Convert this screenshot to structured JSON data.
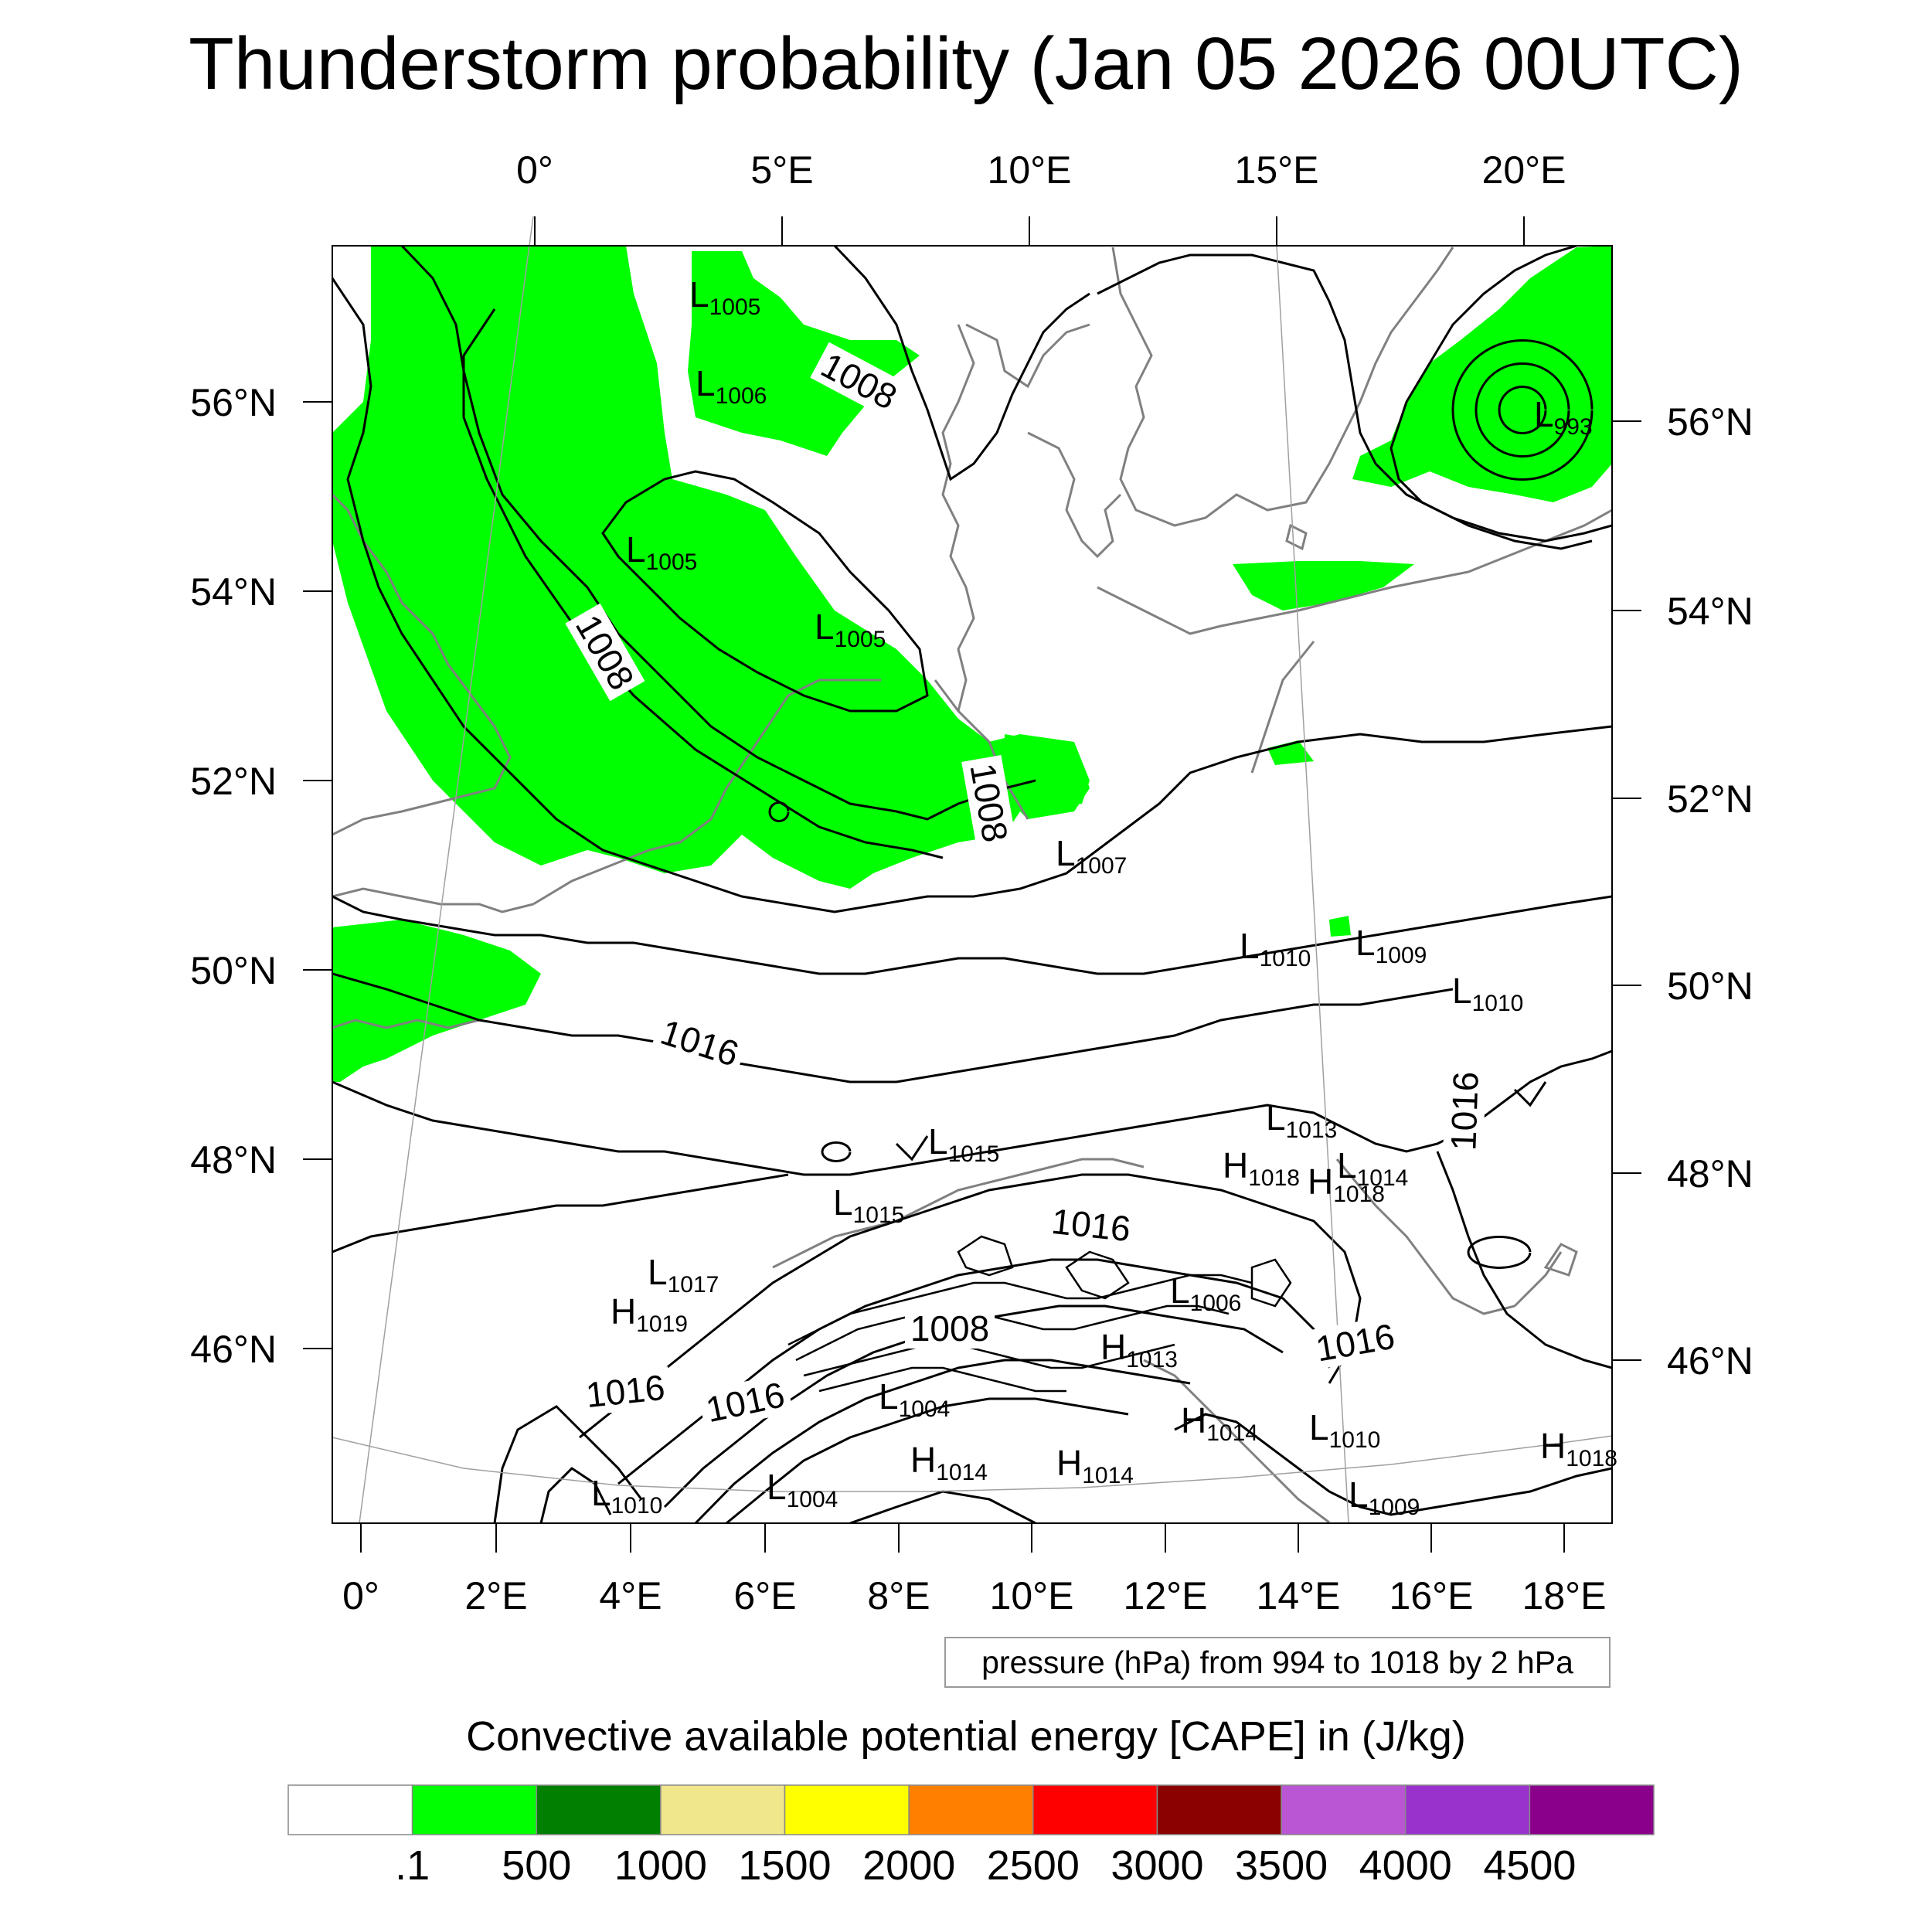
{
  "title": "Thunderstorm probability (Jan 05 2026 00UTC)",
  "top_lon_labels": [
    "0°",
    "5°E",
    "10°E",
    "15°E",
    "20°E"
  ],
  "bottom_lon_labels": [
    "0°",
    "2°E",
    "4°E",
    "6°E",
    "8°E",
    "10°E",
    "12°E",
    "14°E",
    "16°E",
    "18°E"
  ],
  "left_lat_labels": [
    "56°N",
    "54°N",
    "52°N",
    "50°N",
    "48°N",
    "46°N"
  ],
  "right_lat_labels": [
    "56°N",
    "54°N",
    "52°N",
    "50°N",
    "48°N",
    "46°N"
  ],
  "pressure_note": "pressure (hPa) from 994 to 1018 by 2 hPa",
  "cape_title": "Convective available potential energy [CAPE] in (J/kg)",
  "colorbar": {
    "colors": [
      "#ffffff",
      "#00ff00",
      "#007f00",
      "#f0e68c",
      "#ffff00",
      "#ff8000",
      "#ff0000",
      "#8b0000",
      "#ba55d3",
      "#9932cc",
      "#8b008b"
    ],
    "labels": [
      ".1",
      "500",
      "1000",
      "1500",
      "2000",
      "2500",
      "3000",
      "3500",
      "4000",
      "4500"
    ]
  },
  "isobar_labels": [
    "1008",
    "1008",
    "1008",
    "1016",
    "1016",
    "1016",
    "1016",
    "1016",
    "1008",
    "1016"
  ],
  "pressure_centers": [
    {
      "type": "L",
      "value": "1005"
    },
    {
      "type": "L",
      "value": "1006"
    },
    {
      "type": "L",
      "value": "1005"
    },
    {
      "type": "L",
      "value": "1005"
    },
    {
      "type": "L",
      "value": "993"
    },
    {
      "type": "L",
      "value": "1007"
    },
    {
      "type": "L",
      "value": "1010"
    },
    {
      "type": "L",
      "value": "1009"
    },
    {
      "type": "L",
      "value": "1010"
    },
    {
      "type": "L",
      "value": "1013"
    },
    {
      "type": "H",
      "value": "1018"
    },
    {
      "type": "L",
      "value": "1014"
    },
    {
      "type": "H",
      "value": "1018"
    },
    {
      "type": "L",
      "value": "1015"
    },
    {
      "type": "L",
      "value": "1015"
    },
    {
      "type": "L",
      "value": "1017"
    },
    {
      "type": "H",
      "value": "1019"
    },
    {
      "type": "L",
      "value": "1006"
    },
    {
      "type": "H",
      "value": "1013"
    },
    {
      "type": "L",
      "value": "1004"
    },
    {
      "type": "H",
      "value": "1014"
    },
    {
      "type": "L",
      "value": "1010"
    },
    {
      "type": "H",
      "value": "1014"
    },
    {
      "type": "H",
      "value": "1014"
    },
    {
      "type": "L",
      "value": "1010"
    },
    {
      "type": "L",
      "value": "1004"
    },
    {
      "type": "L",
      "value": "1009"
    },
    {
      "type": "H",
      "value": "1018"
    }
  ],
  "legend_colors": {
    "cape_low": "#00ff00",
    "coast": "#808080",
    "isobar": "#000000"
  }
}
